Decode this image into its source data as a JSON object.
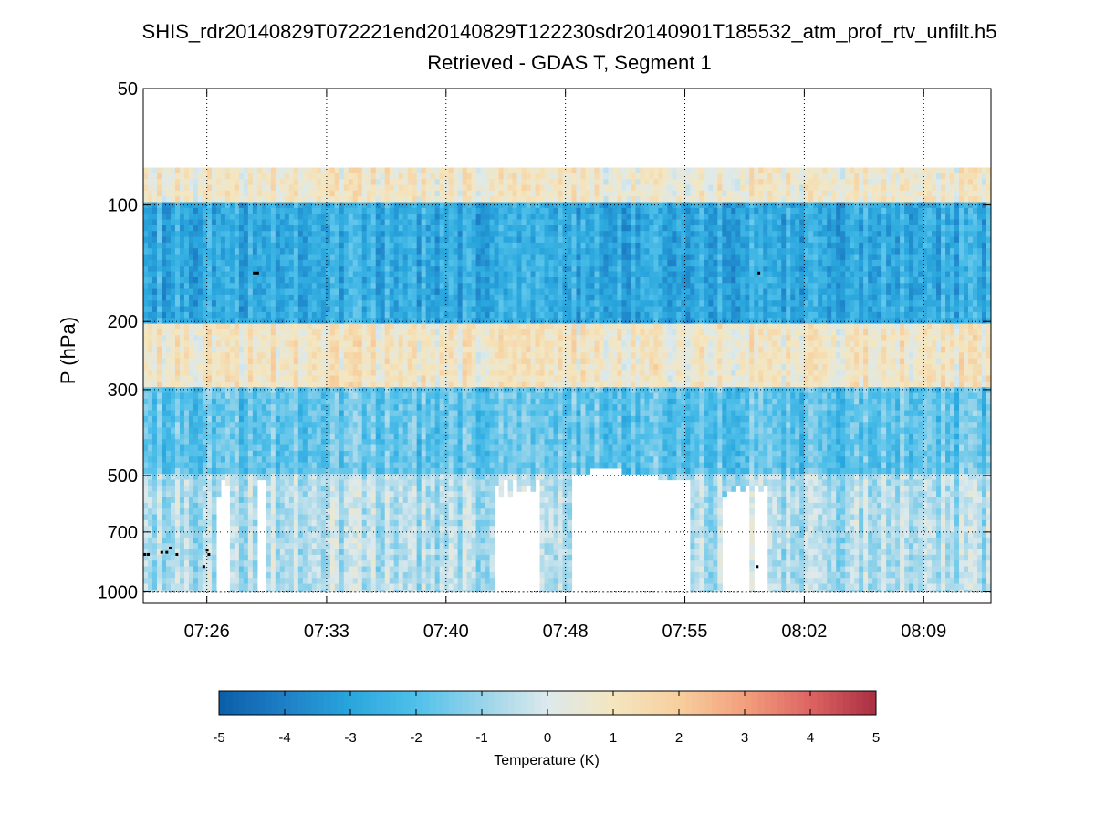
{
  "chart_data": {
    "type": "heatmap",
    "title": "SHIS_rdr20140829T072221end20140829T122230sdr20140901T185532_atm_prof_rtv_unfilt.h5",
    "subtitle": "Retrieved - GDAS T, Segment 1",
    "xlabel": "",
    "ylabel": "P (hPa)",
    "x_ticks": [
      "07:26",
      "07:33",
      "07:40",
      "07:48",
      "07:55",
      "08:02",
      "08:09"
    ],
    "x_tick_minutes": [
      3.78,
      10.9,
      18.0,
      25.1,
      32.2,
      39.3,
      46.4
    ],
    "x_range_minutes": [
      0,
      50.4
    ],
    "y_ticks": [
      50,
      100,
      200,
      300,
      500,
      700,
      1000
    ],
    "y_scale": "log",
    "y_range": [
      50,
      1070
    ],
    "y_reversed": true,
    "grid": true,
    "colorbar": {
      "label": "Temperature (K)",
      "min": -5,
      "max": 5,
      "ticks": [
        -5,
        -4,
        -3,
        -2,
        -1,
        0,
        1,
        2,
        3,
        4,
        5
      ],
      "colors": [
        "#0b5ea8",
        "#1e7fc6",
        "#29a6dd",
        "#50c0ea",
        "#98d4ea",
        "#dce9ec",
        "#f4e6bf",
        "#f7cf9e",
        "#f2a07c",
        "#dd6462",
        "#a92e43"
      ]
    },
    "layers": [
      {
        "name": "upper warm layer",
        "p_range": [
          80,
          100
        ],
        "mean_anomaly": 0.8
      },
      {
        "name": "cold band",
        "p_range": [
          100,
          200
        ],
        "mean_anomaly": -2.8
      },
      {
        "name": "mid warm layer",
        "p_range": [
          200,
          300
        ],
        "mean_anomaly": 0.9
      },
      {
        "name": "cool layer",
        "p_range": [
          300,
          500
        ],
        "mean_anomaly": -1.8
      },
      {
        "name": "lower layer (partial)",
        "p_range": [
          500,
          1000
        ],
        "mean_anomaly": -0.6
      }
    ],
    "surface_pressure_hpa": 1000,
    "markers": [
      {
        "time_min": 0.1,
        "p": 800
      },
      {
        "time_min": 0.3,
        "p": 800
      },
      {
        "time_min": 1.1,
        "p": 790
      },
      {
        "time_min": 1.4,
        "p": 790
      },
      {
        "time_min": 1.6,
        "p": 770
      },
      {
        "time_min": 2.0,
        "p": 800
      },
      {
        "time_min": 3.6,
        "p": 860
      },
      {
        "time_min": 3.8,
        "p": 780
      },
      {
        "time_min": 3.9,
        "p": 800
      },
      {
        "time_min": 6.6,
        "p": 150
      },
      {
        "time_min": 6.8,
        "p": 150
      },
      {
        "time_min": 36.5,
        "p": 860
      },
      {
        "time_min": 36.6,
        "p": 150
      }
    ]
  }
}
